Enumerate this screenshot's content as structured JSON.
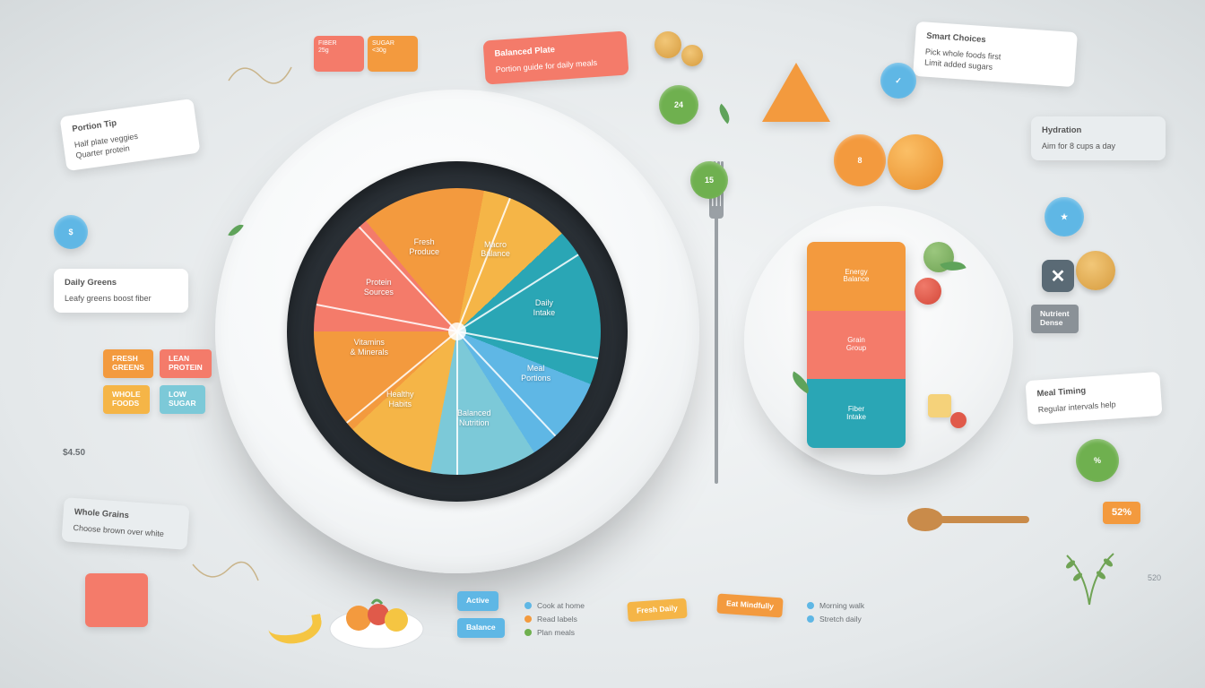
{
  "palette": {
    "coral": "#f47b6a",
    "orange": "#f39a3e",
    "amber": "#f5b547",
    "teal": "#2aa6b5",
    "sky": "#5fb7e5",
    "cyan": "#7cc9d8",
    "green": "#6fb04f",
    "leaf": "#5fa35a",
    "red": "#e05a4a",
    "grey": "#8a9197",
    "darkplate": "#2a3036",
    "text": "#555555",
    "bg_center": "#f5f7f8",
    "bg_edge": "#d5dadc"
  },
  "pie": {
    "type": "pie",
    "slices": [
      {
        "label": "Macro\nBalance",
        "value": 14,
        "color": "#f47b6a"
      },
      {
        "label": "Daily\nIntake",
        "value": 14,
        "color": "#f39a3e"
      },
      {
        "label": "Meal\nPortions",
        "value": 10,
        "color": "#f5b547"
      },
      {
        "label": "Balanced\nNutrition",
        "value": 18,
        "color": "#2aa6b5"
      },
      {
        "label": "Healthy\nHabits",
        "value": 10,
        "color": "#5fb7e5"
      },
      {
        "label": "Vitamins\n& Minerals",
        "value": 12,
        "color": "#7cc9d8"
      },
      {
        "label": "Protein\nSources",
        "value": 10,
        "color": "#f5b547"
      },
      {
        "label": "Fresh\nProduce",
        "value": 12,
        "color": "#f39a3e"
      }
    ]
  },
  "bar": {
    "segments": [
      {
        "label": "Energy\nBalance",
        "color": "#f39a3e"
      },
      {
        "label": "Grain\nGroup",
        "color": "#f47b6a"
      },
      {
        "label": "Fiber\nIntake",
        "color": "#2aa6b5"
      }
    ]
  },
  "cards": {
    "c_top_coral": {
      "title": "Balanced Plate",
      "body": "Portion guide for daily meals"
    },
    "c_top_right": {
      "title": "Smart Choices",
      "body": "Pick whole foods first\nLimit added sugars"
    },
    "c_right_1": {
      "title": "Hydration",
      "body": "Aim for 8 cups a day"
    },
    "c_right_2": {
      "title": "Meal Timing",
      "body": "Regular intervals help"
    },
    "c_left_1": {
      "title": "Portion Tip",
      "body": "Half plate veggies\nQuarter protein"
    },
    "c_left_2": {
      "title": "Daily Greens",
      "body": "Leafy greens boost fiber"
    },
    "c_left_3": {
      "title": "Whole Grains",
      "body": "Choose brown over white"
    }
  },
  "tags": {
    "t_nw_1": {
      "text": "FRESH\nGREENS",
      "color": "#f39a3e"
    },
    "t_nw_2": {
      "text": "LEAN\nPROTEIN",
      "color": "#f47b6a"
    },
    "t_nw_3": {
      "text": "WHOLE\nFOODS",
      "color": "#f5b547"
    },
    "t_nw_4": {
      "text": "LOW\nSUGAR",
      "color": "#7cc9d8"
    },
    "t_s_1": {
      "text": "Active",
      "color": "#5fb7e5"
    },
    "t_s_2": {
      "text": "Balance",
      "color": "#5fb7e5"
    },
    "t_s_3": {
      "text": "Fresh Daily",
      "color": "#f5b547"
    },
    "t_s_4": {
      "text": "Eat Mindfully",
      "color": "#f39a3e"
    },
    "t_e_1": {
      "text": "52%",
      "color": "#f39a3e"
    },
    "t_e_2": {
      "text": "Nutrient\nDense",
      "color": "#8a9197"
    }
  },
  "chips": {
    "ch1": {
      "text": "24",
      "color": "#6fb04f"
    },
    "ch2": {
      "text": "✓",
      "color": "#5fb7e5"
    },
    "ch3": {
      "text": "15",
      "color": "#6fb04f"
    },
    "ch4": {
      "text": "★",
      "color": "#5fb7e5"
    },
    "ch5": {
      "text": "8",
      "color": "#f39a3e"
    },
    "ch6": {
      "text": "%",
      "color": "#6fb04f"
    },
    "ch7": {
      "text": "$",
      "color": "#5fb7e5"
    }
  },
  "notes": {
    "n_mid": [
      {
        "dot": "#5fb7e5",
        "text": "Cook at home"
      },
      {
        "dot": "#f39a3e",
        "text": "Read labels"
      },
      {
        "dot": "#6fb04f",
        "text": "Plan meals"
      }
    ],
    "n_se": [
      {
        "dot": "#5fb7e5",
        "text": "Morning walk"
      },
      {
        "dot": "#5fb7e5",
        "text": "Stretch daily"
      }
    ]
  },
  "mini": {
    "m1": {
      "text": "FIBER\n25g",
      "color": "#f47b6a"
    },
    "m2": {
      "text": "SUGAR\n<30g",
      "color": "#f39a3e"
    }
  },
  "nums": {
    "price": "$4.50",
    "cal": "520"
  }
}
